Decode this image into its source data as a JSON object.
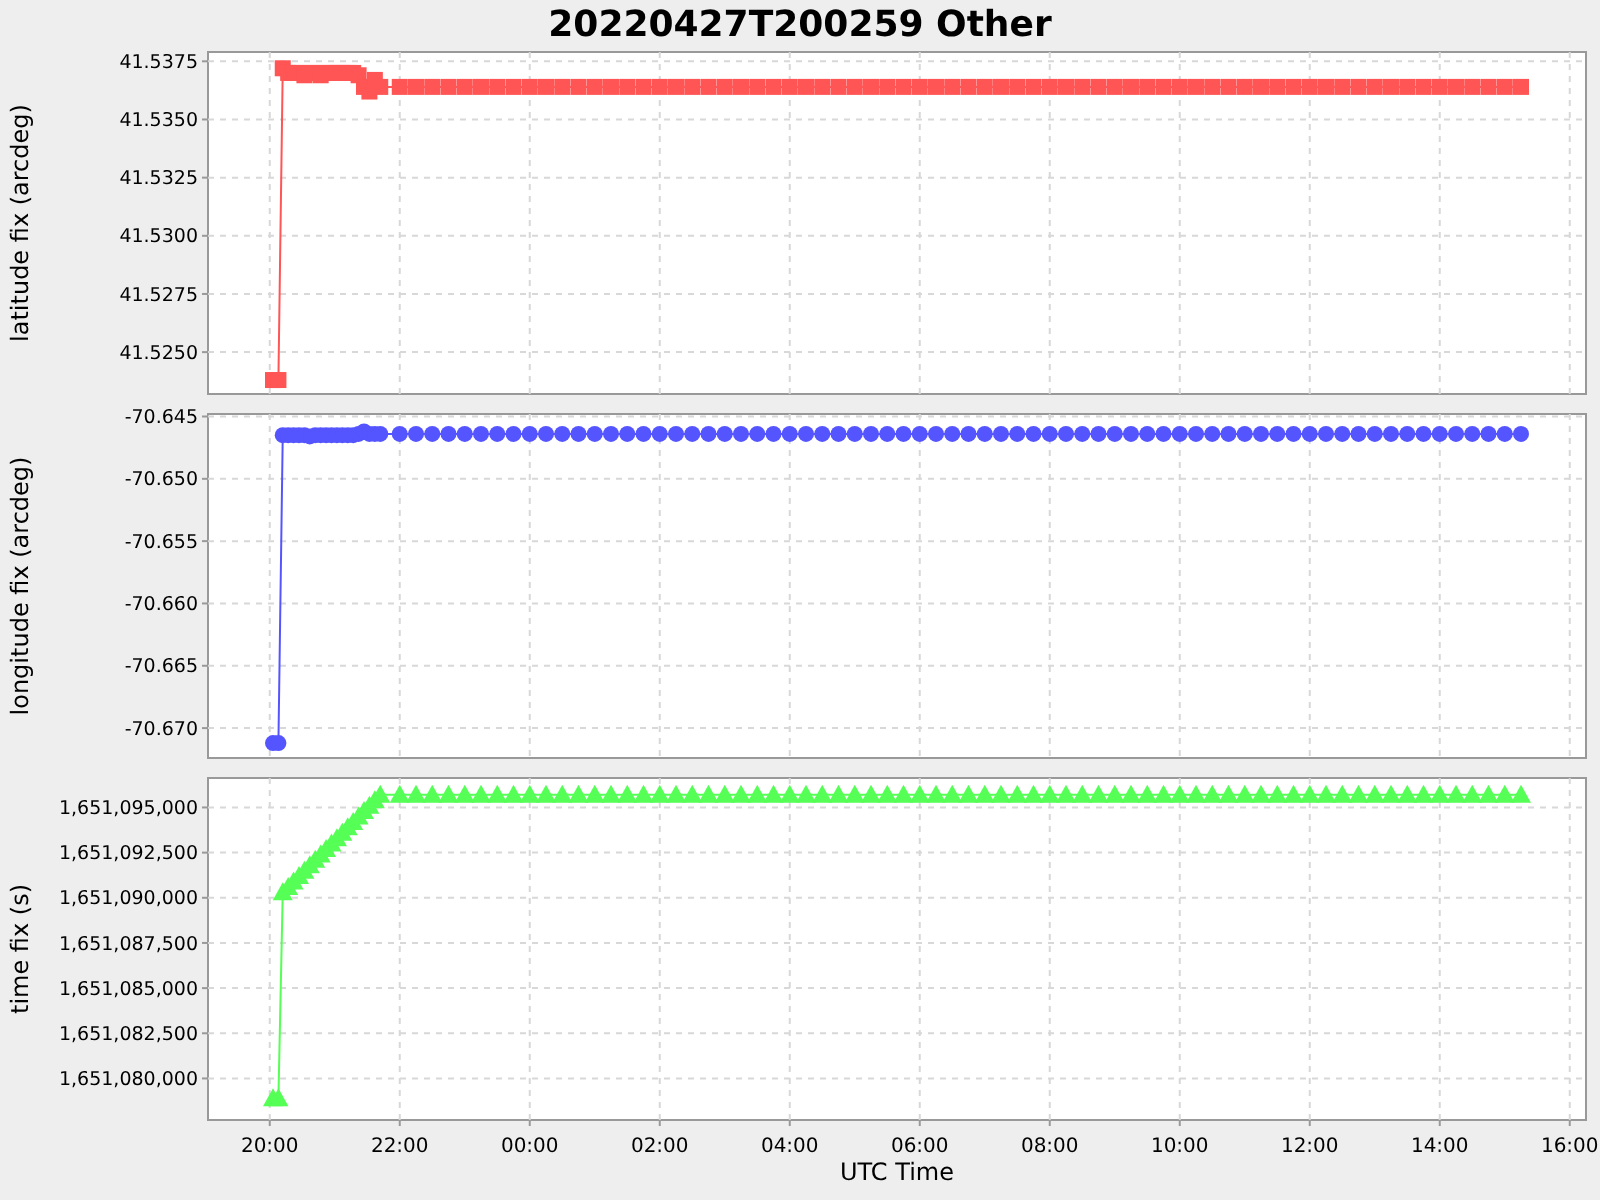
{
  "chart_data": [
    {
      "type": "line",
      "title": "20220427T200259 Other",
      "ylabel": "latitude fix (arcdeg)",
      "marker": "square",
      "grid": true,
      "tick_labels": "y",
      "x": [
        "2022-04-27T20:03",
        "2022-04-27T20:08",
        "2022-04-27T20:12",
        "2022-04-27T20:17",
        "2022-04-27T20:22",
        "2022-04-27T20:27",
        "2022-04-27T20:32",
        "2022-04-27T20:37",
        "2022-04-27T20:42",
        "2022-04-27T20:47",
        "2022-04-27T20:52",
        "2022-04-27T20:57",
        "2022-04-27T21:02",
        "2022-04-27T21:07",
        "2022-04-27T21:12",
        "2022-04-27T21:17",
        "2022-04-27T21:22",
        "2022-04-27T21:27",
        "2022-04-27T21:32",
        "2022-04-27T21:37",
        "2022-04-27T21:42",
        "2022-04-27T22:00",
        "2022-04-27T22:15",
        "2022-04-27T22:30",
        "2022-04-27T22:45",
        "2022-04-27T23:00",
        "2022-04-27T23:15",
        "2022-04-27T23:30",
        "2022-04-27T23:45",
        "2022-04-28T00:00",
        "2022-04-28T00:15",
        "2022-04-28T00:30",
        "2022-04-28T00:45",
        "2022-04-28T01:00",
        "2022-04-28T01:15",
        "2022-04-28T01:30",
        "2022-04-28T01:45",
        "2022-04-28T02:00",
        "2022-04-28T02:15",
        "2022-04-28T02:30",
        "2022-04-28T02:45",
        "2022-04-28T03:00",
        "2022-04-28T03:15",
        "2022-04-28T03:30",
        "2022-04-28T03:45",
        "2022-04-28T04:00",
        "2022-04-28T04:15",
        "2022-04-28T04:30",
        "2022-04-28T04:45",
        "2022-04-28T05:00",
        "2022-04-28T05:15",
        "2022-04-28T05:30",
        "2022-04-28T05:45",
        "2022-04-28T06:00",
        "2022-04-28T06:15",
        "2022-04-28T06:30",
        "2022-04-28T06:45",
        "2022-04-28T07:00",
        "2022-04-28T07:15",
        "2022-04-28T07:30",
        "2022-04-28T07:45",
        "2022-04-28T08:00",
        "2022-04-28T08:15",
        "2022-04-28T08:30",
        "2022-04-28T08:45",
        "2022-04-28T09:00",
        "2022-04-28T09:15",
        "2022-04-28T09:30",
        "2022-04-28T09:45",
        "2022-04-28T10:00",
        "2022-04-28T10:15",
        "2022-04-28T10:30",
        "2022-04-28T10:45",
        "2022-04-28T11:00",
        "2022-04-28T11:15",
        "2022-04-28T11:30",
        "2022-04-28T11:45",
        "2022-04-28T12:00",
        "2022-04-28T12:15",
        "2022-04-28T12:30",
        "2022-04-28T12:45",
        "2022-04-28T13:00",
        "2022-04-28T13:15",
        "2022-04-28T13:30",
        "2022-04-28T13:45",
        "2022-04-28T14:00",
        "2022-04-28T14:15",
        "2022-04-28T14:30",
        "2022-04-28T14:45",
        "2022-04-28T15:00",
        "2022-04-28T15:15"
      ],
      "series": [
        {
          "color": "#ff5555",
          "values": [
            41.5238,
            41.5238,
            41.5372,
            41.537,
            41.537,
            41.537,
            41.5369,
            41.537,
            41.537,
            41.5369,
            41.537,
            41.537,
            41.537,
            41.537,
            41.537,
            41.537,
            41.5369,
            41.5364,
            41.5362,
            41.5367,
            41.5364,
            41.5364,
            41.5364,
            41.5364,
            41.5364,
            41.5364,
            41.5364,
            41.5364,
            41.5364,
            41.5364,
            41.5364,
            41.5364,
            41.5364,
            41.5364,
            41.5364,
            41.5364,
            41.5364,
            41.5364,
            41.5364,
            41.5364,
            41.5364,
            41.5364,
            41.5364,
            41.5364,
            41.5364,
            41.5364,
            41.5364,
            41.5364,
            41.5364,
            41.5364,
            41.5364,
            41.5364,
            41.5364,
            41.5364,
            41.5364,
            41.5364,
            41.5364,
            41.5364,
            41.5364,
            41.5364,
            41.5364,
            41.5364,
            41.5364,
            41.5364,
            41.5364,
            41.5364,
            41.5364,
            41.5364,
            41.5364,
            41.5364,
            41.5364,
            41.5364,
            41.5364,
            41.5364,
            41.5364,
            41.5364,
            41.5364,
            41.5364,
            41.5364,
            41.5364,
            41.5364,
            41.5364,
            41.5364,
            41.5364,
            41.5364,
            41.5364,
            41.5364,
            41.5364,
            41.5364,
            41.5364,
            41.5364
          ]
        }
      ],
      "xlim": [
        "2022-04-27T19:03",
        "2022-04-28T16:15"
      ],
      "ylim": [
        41.5232,
        41.5379
      ],
      "yticks": [
        {
          "value": 41.525,
          "label": "41.5250"
        },
        {
          "value": 41.5275,
          "label": "41.5275"
        },
        {
          "value": 41.53,
          "label": "41.5300"
        },
        {
          "value": 41.5325,
          "label": "41.5325"
        },
        {
          "value": 41.535,
          "label": "41.5350"
        },
        {
          "value": 41.5375,
          "label": "41.5375"
        }
      ]
    },
    {
      "type": "line",
      "ylabel": "longitude fix (arcdeg)",
      "marker": "circle",
      "grid": true,
      "tick_labels": "y",
      "x": [
        "2022-04-27T20:03",
        "2022-04-27T20:08",
        "2022-04-27T20:12",
        "2022-04-27T20:17",
        "2022-04-27T20:22",
        "2022-04-27T20:27",
        "2022-04-27T20:32",
        "2022-04-27T20:37",
        "2022-04-27T20:42",
        "2022-04-27T20:47",
        "2022-04-27T20:52",
        "2022-04-27T20:57",
        "2022-04-27T21:02",
        "2022-04-27T21:07",
        "2022-04-27T21:12",
        "2022-04-27T21:17",
        "2022-04-27T21:22",
        "2022-04-27T21:27",
        "2022-04-27T21:32",
        "2022-04-27T21:37",
        "2022-04-27T21:42",
        "2022-04-27T22:00",
        "2022-04-27T22:15",
        "2022-04-27T22:30",
        "2022-04-27T22:45",
        "2022-04-27T23:00",
        "2022-04-27T23:15",
        "2022-04-27T23:30",
        "2022-04-27T23:45",
        "2022-04-28T00:00",
        "2022-04-28T00:15",
        "2022-04-28T00:30",
        "2022-04-28T00:45",
        "2022-04-28T01:00",
        "2022-04-28T01:15",
        "2022-04-28T01:30",
        "2022-04-28T01:45",
        "2022-04-28T02:00",
        "2022-04-28T02:15",
        "2022-04-28T02:30",
        "2022-04-28T02:45",
        "2022-04-28T03:00",
        "2022-04-28T03:15",
        "2022-04-28T03:30",
        "2022-04-28T03:45",
        "2022-04-28T04:00",
        "2022-04-28T04:15",
        "2022-04-28T04:30",
        "2022-04-28T04:45",
        "2022-04-28T05:00",
        "2022-04-28T05:15",
        "2022-04-28T05:30",
        "2022-04-28T05:45",
        "2022-04-28T06:00",
        "2022-04-28T06:15",
        "2022-04-28T06:30",
        "2022-04-28T06:45",
        "2022-04-28T07:00",
        "2022-04-28T07:15",
        "2022-04-28T07:30",
        "2022-04-28T07:45",
        "2022-04-28T08:00",
        "2022-04-28T08:15",
        "2022-04-28T08:30",
        "2022-04-28T08:45",
        "2022-04-28T09:00",
        "2022-04-28T09:15",
        "2022-04-28T09:30",
        "2022-04-28T09:45",
        "2022-04-28T10:00",
        "2022-04-28T10:15",
        "2022-04-28T10:30",
        "2022-04-28T10:45",
        "2022-04-28T11:00",
        "2022-04-28T11:15",
        "2022-04-28T11:30",
        "2022-04-28T11:45",
        "2022-04-28T12:00",
        "2022-04-28T12:15",
        "2022-04-28T12:30",
        "2022-04-28T12:45",
        "2022-04-28T13:00",
        "2022-04-28T13:15",
        "2022-04-28T13:30",
        "2022-04-28T13:45",
        "2022-04-28T14:00",
        "2022-04-28T14:15",
        "2022-04-28T14:30",
        "2022-04-28T14:45",
        "2022-04-28T15:00",
        "2022-04-28T15:15"
      ],
      "series": [
        {
          "color": "#5555ff",
          "values": [
            -70.6712,
            -70.6712,
            -70.6465,
            -70.6465,
            -70.6465,
            -70.6465,
            -70.6465,
            -70.6466,
            -70.6465,
            -70.6465,
            -70.6465,
            -70.6465,
            -70.6465,
            -70.6465,
            -70.6465,
            -70.6465,
            -70.6464,
            -70.6462,
            -70.6464,
            -70.6464,
            -70.6464,
            -70.6464,
            -70.6464,
            -70.6464,
            -70.6464,
            -70.6464,
            -70.6464,
            -70.6464,
            -70.6464,
            -70.6464,
            -70.6464,
            -70.6464,
            -70.6464,
            -70.6464,
            -70.6464,
            -70.6464,
            -70.6464,
            -70.6464,
            -70.6464,
            -70.6464,
            -70.6464,
            -70.6464,
            -70.6464,
            -70.6464,
            -70.6464,
            -70.6464,
            -70.6464,
            -70.6464,
            -70.6464,
            -70.6464,
            -70.6464,
            -70.6464,
            -70.6464,
            -70.6464,
            -70.6464,
            -70.6464,
            -70.6464,
            -70.6464,
            -70.6464,
            -70.6464,
            -70.6464,
            -70.6464,
            -70.6464,
            -70.6464,
            -70.6464,
            -70.6464,
            -70.6464,
            -70.6464,
            -70.6464,
            -70.6464,
            -70.6464,
            -70.6464,
            -70.6464,
            -70.6464,
            -70.6464,
            -70.6464,
            -70.6464,
            -70.6464,
            -70.6464,
            -70.6464,
            -70.6464,
            -70.6464,
            -70.6464,
            -70.6464,
            -70.6464,
            -70.6464,
            -70.6464,
            -70.6464,
            -70.6464,
            -70.6464,
            -70.6464
          ]
        }
      ],
      "xlim": [
        "2022-04-27T19:03",
        "2022-04-28T16:15"
      ],
      "ylim": [
        -70.6724,
        -70.6448
      ],
      "yticks": [
        {
          "value": -70.67,
          "label": "-70.670"
        },
        {
          "value": -70.665,
          "label": "-70.665"
        },
        {
          "value": -70.66,
          "label": "-70.660"
        },
        {
          "value": -70.655,
          "label": "-70.655"
        },
        {
          "value": -70.65,
          "label": "-70.650"
        },
        {
          "value": -70.645,
          "label": "-70.645"
        }
      ]
    },
    {
      "type": "line",
      "xlabel": "UTC Time",
      "ylabel": "time fix (s)",
      "marker": "triangle",
      "grid": true,
      "x": [
        "2022-04-27T20:03",
        "2022-04-27T20:08",
        "2022-04-27T20:12",
        "2022-04-27T20:17",
        "2022-04-27T20:22",
        "2022-04-27T20:27",
        "2022-04-27T20:32",
        "2022-04-27T20:37",
        "2022-04-27T20:42",
        "2022-04-27T20:47",
        "2022-04-27T20:52",
        "2022-04-27T20:57",
        "2022-04-27T21:02",
        "2022-04-27T21:07",
        "2022-04-27T21:12",
        "2022-04-27T21:17",
        "2022-04-27T21:22",
        "2022-04-27T21:27",
        "2022-04-27T21:32",
        "2022-04-27T21:37",
        "2022-04-27T21:42",
        "2022-04-27T22:00",
        "2022-04-27T22:15",
        "2022-04-27T22:30",
        "2022-04-27T22:45",
        "2022-04-27T23:00",
        "2022-04-27T23:15",
        "2022-04-27T23:30",
        "2022-04-27T23:45",
        "2022-04-28T00:00",
        "2022-04-28T00:15",
        "2022-04-28T00:30",
        "2022-04-28T00:45",
        "2022-04-28T01:00",
        "2022-04-28T01:15",
        "2022-04-28T01:30",
        "2022-04-28T01:45",
        "2022-04-28T02:00",
        "2022-04-28T02:15",
        "2022-04-28T02:30",
        "2022-04-28T02:45",
        "2022-04-28T03:00",
        "2022-04-28T03:15",
        "2022-04-28T03:30",
        "2022-04-28T03:45",
        "2022-04-28T04:00",
        "2022-04-28T04:15",
        "2022-04-28T04:30",
        "2022-04-28T04:45",
        "2022-04-28T05:00",
        "2022-04-28T05:15",
        "2022-04-28T05:30",
        "2022-04-28T05:45",
        "2022-04-28T06:00",
        "2022-04-28T06:15",
        "2022-04-28T06:30",
        "2022-04-28T06:45",
        "2022-04-28T07:00",
        "2022-04-28T07:15",
        "2022-04-28T07:30",
        "2022-04-28T07:45",
        "2022-04-28T08:00",
        "2022-04-28T08:15",
        "2022-04-28T08:30",
        "2022-04-28T08:45",
        "2022-04-28T09:00",
        "2022-04-28T09:15",
        "2022-04-28T09:30",
        "2022-04-28T09:45",
        "2022-04-28T10:00",
        "2022-04-28T10:15",
        "2022-04-28T10:30",
        "2022-04-28T10:45",
        "2022-04-28T11:00",
        "2022-04-28T11:15",
        "2022-04-28T11:30",
        "2022-04-28T11:45",
        "2022-04-28T12:00",
        "2022-04-28T12:15",
        "2022-04-28T12:30",
        "2022-04-28T12:45",
        "2022-04-28T13:00",
        "2022-04-28T13:15",
        "2022-04-28T13:30",
        "2022-04-28T13:45",
        "2022-04-28T14:00",
        "2022-04-28T14:15",
        "2022-04-28T14:30",
        "2022-04-28T14:45",
        "2022-04-28T15:00",
        "2022-04-28T15:15"
      ],
      "series": [
        {
          "color": "#55ff55",
          "values": [
            1651078900,
            1651078900,
            1651090300,
            1651090600,
            1651090900,
            1651091200,
            1651091500,
            1651091800,
            1651092100,
            1651092400,
            1651092700,
            1651093000,
            1651093300,
            1651093600,
            1651093900,
            1651094200,
            1651094500,
            1651094800,
            1651095100,
            1651095400,
            1651095700,
            1651095700,
            1651095700,
            1651095700,
            1651095700,
            1651095700,
            1651095700,
            1651095700,
            1651095700,
            1651095700,
            1651095700,
            1651095700,
            1651095700,
            1651095700,
            1651095700,
            1651095700,
            1651095700,
            1651095700,
            1651095700,
            1651095700,
            1651095700,
            1651095700,
            1651095700,
            1651095700,
            1651095700,
            1651095700,
            1651095700,
            1651095700,
            1651095700,
            1651095700,
            1651095700,
            1651095700,
            1651095700,
            1651095700,
            1651095700,
            1651095700,
            1651095700,
            1651095700,
            1651095700,
            1651095700,
            1651095700,
            1651095700,
            1651095700,
            1651095700,
            1651095700,
            1651095700,
            1651095700,
            1651095700,
            1651095700,
            1651095700,
            1651095700,
            1651095700,
            1651095700,
            1651095700,
            1651095700,
            1651095700,
            1651095700,
            1651095700,
            1651095700,
            1651095700,
            1651095700,
            1651095700,
            1651095700,
            1651095700,
            1651095700,
            1651095700,
            1651095700,
            1651095700,
            1651095700,
            1651095700,
            1651095700
          ]
        }
      ],
      "xlim": [
        "2022-04-27T19:03",
        "2022-04-28T16:15"
      ],
      "xticks": [
        {
          "value": "2022-04-27T20:00",
          "label": "20:00"
        },
        {
          "value": "2022-04-27T22:00",
          "label": "22:00"
        },
        {
          "value": "2022-04-28T00:00",
          "label": "00:00"
        },
        {
          "value": "2022-04-28T02:00",
          "label": "02:00"
        },
        {
          "value": "2022-04-28T04:00",
          "label": "04:00"
        },
        {
          "value": "2022-04-28T06:00",
          "label": "06:00"
        },
        {
          "value": "2022-04-28T08:00",
          "label": "08:00"
        },
        {
          "value": "2022-04-28T10:00",
          "label": "10:00"
        },
        {
          "value": "2022-04-28T12:00",
          "label": "12:00"
        },
        {
          "value": "2022-04-28T14:00",
          "label": "14:00"
        },
        {
          "value": "2022-04-28T16:00",
          "label": "16:00"
        }
      ],
      "ylim": [
        1651077700,
        1651096630
      ],
      "yticks": [
        {
          "value": 1651080000,
          "label": "1,651,080,000"
        },
        {
          "value": 1651082500,
          "label": "1,651,082,500"
        },
        {
          "value": 1651085000,
          "label": "1,651,085,000"
        },
        {
          "value": 1651087500,
          "label": "1,651,087,500"
        },
        {
          "value": 1651090000,
          "label": "1,651,090,000"
        },
        {
          "value": 1651092500,
          "label": "1,651,092,500"
        },
        {
          "value": 1651095000,
          "label": "1,651,095,000"
        }
      ]
    }
  ]
}
